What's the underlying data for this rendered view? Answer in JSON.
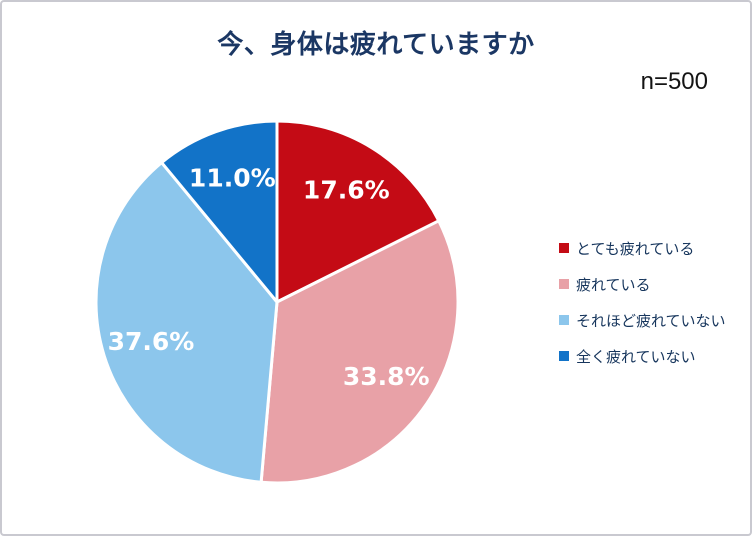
{
  "frame": {
    "background_color": "#ffffff",
    "border_color": "#c9c9d0"
  },
  "header": {
    "title": "今、身体は疲れていますか",
    "title_color": "#1b3764",
    "sample_size_label": "n=500"
  },
  "chart_data": {
    "type": "pie",
    "title": "今、身体は疲れていますか",
    "n": 500,
    "start_angle_deg": 0,
    "direction": "clockwise",
    "units": "%",
    "segments": [
      {
        "label": "とても疲れている",
        "value": 17.6,
        "display": "17.6%",
        "color": "#c40b15"
      },
      {
        "label": "疲れている",
        "value": 33.8,
        "display": "33.8%",
        "color": "#e8a1a7"
      },
      {
        "label": "それほど疲れていない",
        "value": 37.6,
        "display": "37.6%",
        "color": "#8cc6ec"
      },
      {
        "label": "全く疲れていない",
        "value": 11.0,
        "display": "11.0%",
        "color": "#1273c8"
      }
    ],
    "slice_label_color": "#ffffff",
    "slice_border_color": "#ffffff",
    "legend_position": "right",
    "legend_text_color": "#17365d"
  }
}
